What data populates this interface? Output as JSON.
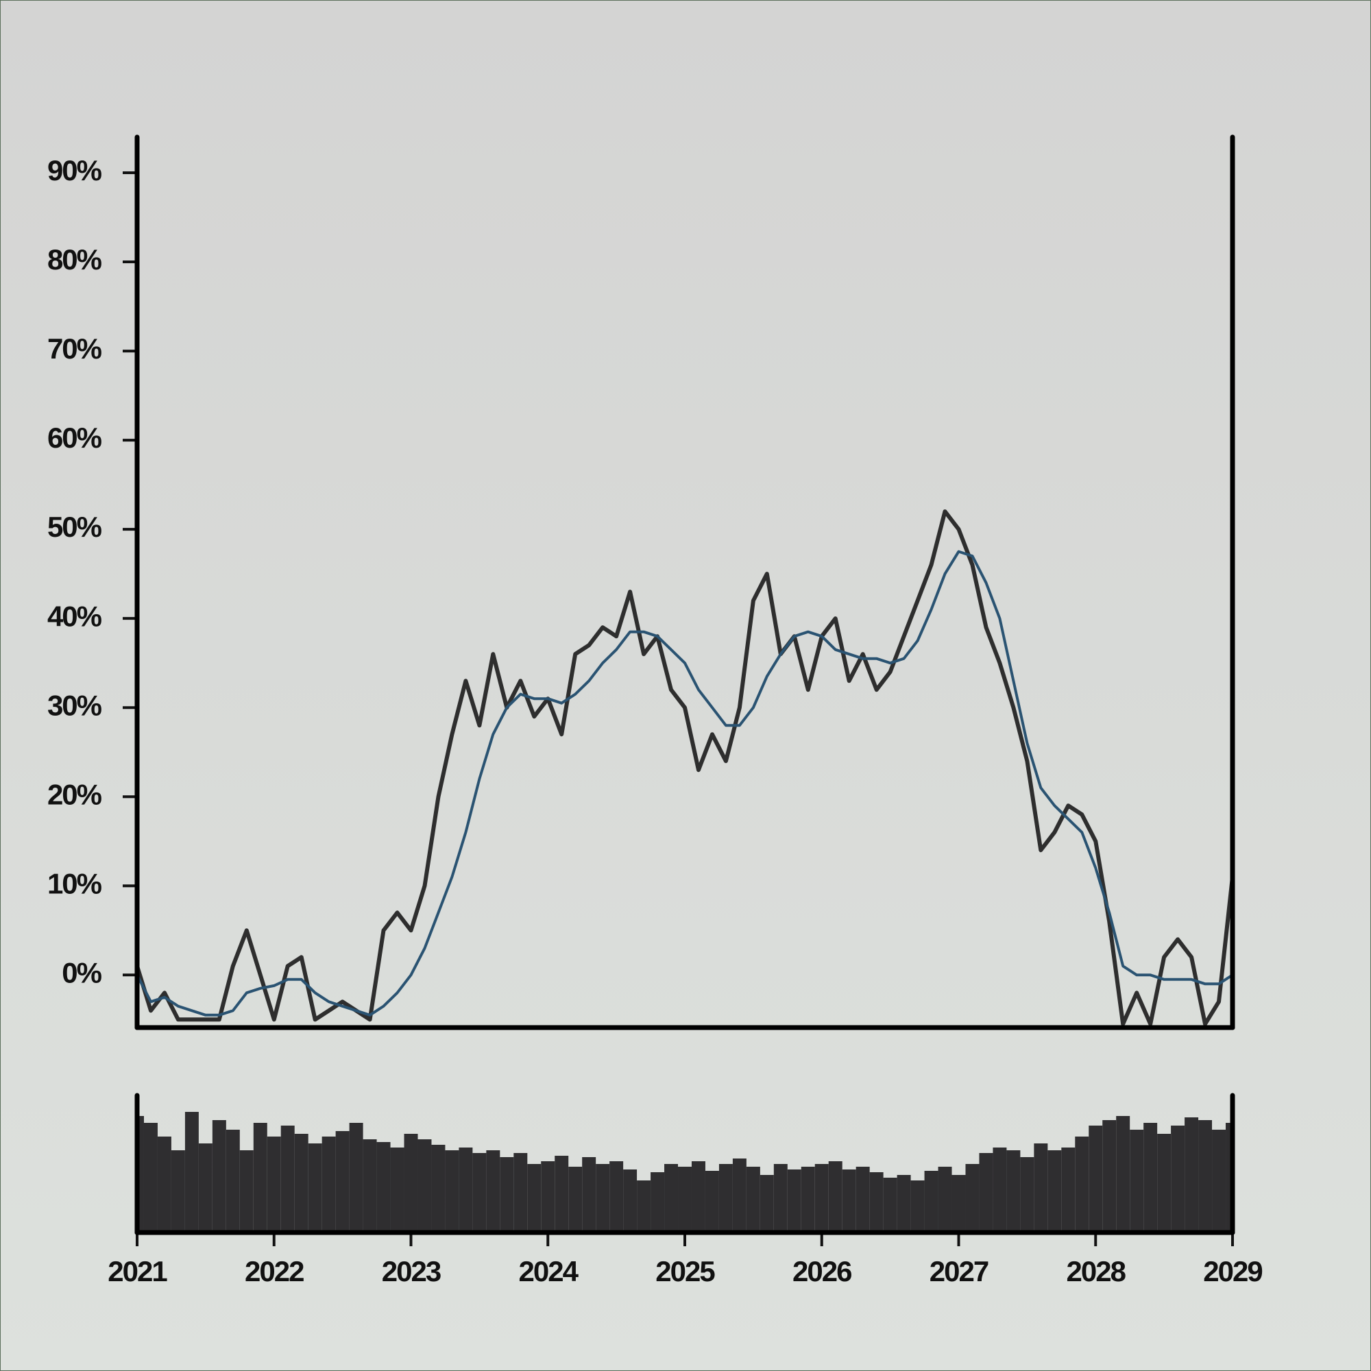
{
  "chart_data": [
    {
      "type": "line",
      "x": [
        2021,
        2021.1,
        2021.2,
        2021.3,
        2021.4,
        2021.5,
        2021.6,
        2021.7,
        2021.8,
        2021.9,
        2022,
        2022.1,
        2022.2,
        2022.3,
        2022.4,
        2022.5,
        2022.6,
        2022.7,
        2022.8,
        2022.9,
        2023,
        2023.1,
        2023.2,
        2023.3,
        2023.4,
        2023.5,
        2023.6,
        2023.7,
        2023.8,
        2023.9,
        2024,
        2024.1,
        2024.2,
        2024.3,
        2024.4,
        2024.5,
        2024.6,
        2024.7,
        2024.8,
        2024.9,
        2025,
        2025.1,
        2025.2,
        2025.3,
        2025.4,
        2025.5,
        2025.6,
        2025.7,
        2025.8,
        2025.9,
        2026,
        2026.1,
        2026.2,
        2026.3,
        2026.4,
        2026.5,
        2026.6,
        2026.7,
        2026.8,
        2026.9,
        2027,
        2027.1,
        2027.2,
        2027.3,
        2027.4,
        2027.5,
        2027.6,
        2027.7,
        2027.8,
        2027.9,
        2028,
        2028.1,
        2028.2,
        2028.3,
        2028.4,
        2028.5,
        2028.6,
        2028.7,
        2028.8,
        2028.9,
        2029
      ],
      "series": [
        {
          "color": "#2e2e2e",
          "values": [
            1,
            -4,
            -2,
            -5,
            -5,
            -5,
            -5,
            1,
            5,
            0,
            -5,
            1,
            2,
            -5,
            -4,
            -3,
            -4,
            -5,
            5,
            7,
            5,
            10,
            20,
            27,
            33,
            28,
            36,
            30,
            33,
            29,
            31,
            27,
            36,
            37,
            39,
            38,
            43,
            36,
            38,
            32,
            30,
            23,
            27,
            24,
            30,
            42,
            45,
            36,
            38,
            32,
            38,
            40,
            33,
            36,
            32,
            34,
            38,
            42,
            46,
            52,
            50,
            46,
            39,
            35,
            30,
            24,
            14,
            16,
            19,
            18,
            15,
            6,
            -5.5,
            -2,
            -5.5,
            2,
            4,
            2,
            -5.5,
            -3,
            11
          ]
        },
        {
          "color": "#2a5372",
          "values": [
            0,
            -3,
            -2.5,
            -3.5,
            -4,
            -4.5,
            -4.5,
            -4,
            -2,
            -1.5,
            -1.2,
            -0.5,
            -0.5,
            -2,
            -3,
            -3.5,
            -4,
            -4.5,
            -3.5,
            -2,
            0,
            3,
            7,
            11,
            16,
            22,
            27,
            30,
            31.5,
            31,
            31,
            30.5,
            31.5,
            33,
            35,
            36.5,
            38.5,
            38.5,
            38,
            36.5,
            35,
            32,
            30,
            28,
            28,
            30,
            33.5,
            36,
            38,
            38.5,
            38,
            36.5,
            36,
            35.5,
            35.5,
            35,
            35.5,
            37.5,
            41,
            45,
            47.5,
            47,
            44,
            40,
            33,
            26,
            21,
            19,
            17.5,
            16,
            12,
            7,
            1,
            0,
            0,
            -0.5,
            -0.5,
            -0.5,
            -1,
            -1,
            0
          ]
        }
      ],
      "xlim": [
        2021,
        2029
      ],
      "ylim": [
        -5.9,
        94
      ],
      "yticks": [
        {
          "value": 0,
          "label": "0%"
        },
        {
          "value": 10,
          "label": "10%"
        },
        {
          "value": 20,
          "label": "20%"
        },
        {
          "value": 30,
          "label": "30%"
        },
        {
          "value": 40,
          "label": "40%"
        },
        {
          "value": 50,
          "label": "50%"
        },
        {
          "value": 60,
          "label": "60%"
        },
        {
          "value": 70,
          "label": "70%"
        },
        {
          "value": 80,
          "label": "80%"
        },
        {
          "value": 90,
          "label": "90%"
        }
      ]
    },
    {
      "type": "bar",
      "color": "#2f2e30",
      "values": [
        85,
        80,
        70,
        60,
        88,
        65,
        82,
        75,
        60,
        80,
        70,
        78,
        72,
        65,
        70,
        74,
        80,
        68,
        66,
        62,
        72,
        68,
        64,
        60,
        62,
        58,
        60,
        55,
        58,
        50,
        52,
        56,
        48,
        55,
        50,
        52,
        46,
        38,
        44,
        50,
        48,
        52,
        45,
        50,
        54,
        48,
        42,
        50,
        46,
        48,
        50,
        52,
        46,
        48,
        44,
        40,
        42,
        38,
        45,
        48,
        42,
        50,
        58,
        62,
        60,
        55,
        65,
        60,
        62,
        70,
        78,
        82,
        85,
        75,
        80,
        72,
        78,
        84,
        82,
        75,
        80
      ],
      "ylim": [
        0,
        100
      ],
      "xlim": [
        2021,
        2029
      ],
      "xticks": [
        2021,
        2022,
        2023,
        2024,
        2025,
        2026,
        2027,
        2028,
        2029
      ]
    }
  ]
}
